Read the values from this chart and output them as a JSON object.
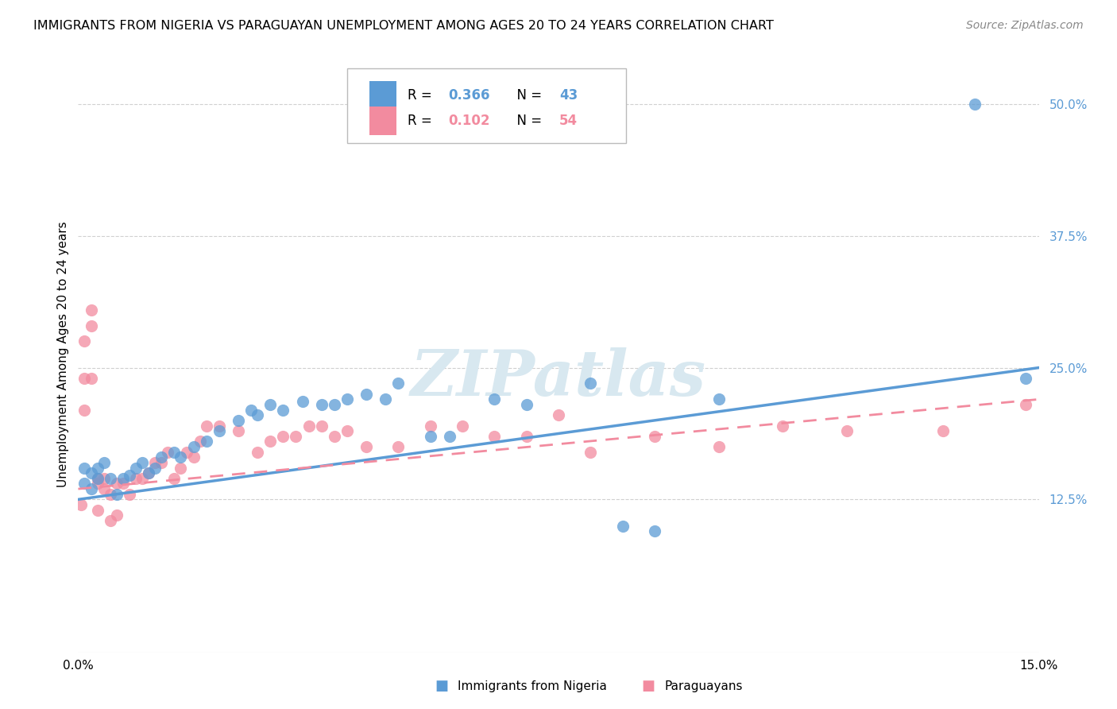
{
  "title": "IMMIGRANTS FROM NIGERIA VS PARAGUAYAN UNEMPLOYMENT AMONG AGES 20 TO 24 YEARS CORRELATION CHART",
  "source": "Source: ZipAtlas.com",
  "ylabel": "Unemployment Among Ages 20 to 24 years",
  "ytick_labels": [
    "12.5%",
    "25.0%",
    "37.5%",
    "50.0%"
  ],
  "ytick_values": [
    0.125,
    0.25,
    0.375,
    0.5
  ],
  "xlim": [
    0.0,
    0.15
  ],
  "ylim": [
    -0.02,
    0.545
  ],
  "legend_label_blue": "Immigrants from Nigeria",
  "legend_label_pink": "Paraguayans",
  "blue_color": "#5b9bd5",
  "pink_color": "#f28b9f",
  "tick_color": "#5b9bd5",
  "grid_color": "#d0d0d0",
  "watermark_color": "#d8e8f0",
  "blue_scatter_x": [
    0.001,
    0.001,
    0.002,
    0.002,
    0.003,
    0.003,
    0.004,
    0.005,
    0.006,
    0.007,
    0.008,
    0.009,
    0.01,
    0.011,
    0.012,
    0.013,
    0.015,
    0.016,
    0.018,
    0.02,
    0.022,
    0.025,
    0.027,
    0.028,
    0.03,
    0.032,
    0.035,
    0.038,
    0.04,
    0.042,
    0.045,
    0.048,
    0.05,
    0.055,
    0.058,
    0.065,
    0.07,
    0.08,
    0.085,
    0.09,
    0.1,
    0.14,
    0.148
  ],
  "blue_scatter_y": [
    0.14,
    0.155,
    0.135,
    0.15,
    0.145,
    0.155,
    0.16,
    0.145,
    0.13,
    0.145,
    0.148,
    0.155,
    0.16,
    0.15,
    0.155,
    0.165,
    0.17,
    0.165,
    0.175,
    0.18,
    0.19,
    0.2,
    0.21,
    0.205,
    0.215,
    0.21,
    0.218,
    0.215,
    0.215,
    0.22,
    0.225,
    0.22,
    0.235,
    0.185,
    0.185,
    0.22,
    0.215,
    0.235,
    0.1,
    0.095,
    0.22,
    0.5,
    0.24
  ],
  "pink_scatter_x": [
    0.0005,
    0.001,
    0.001,
    0.001,
    0.002,
    0.002,
    0.002,
    0.003,
    0.003,
    0.003,
    0.004,
    0.004,
    0.005,
    0.005,
    0.006,
    0.006,
    0.007,
    0.008,
    0.009,
    0.01,
    0.011,
    0.012,
    0.013,
    0.014,
    0.015,
    0.016,
    0.017,
    0.018,
    0.019,
    0.02,
    0.022,
    0.025,
    0.028,
    0.03,
    0.032,
    0.034,
    0.036,
    0.038,
    0.04,
    0.042,
    0.045,
    0.05,
    0.055,
    0.06,
    0.065,
    0.07,
    0.075,
    0.08,
    0.09,
    0.1,
    0.11,
    0.12,
    0.135,
    0.148
  ],
  "pink_scatter_y": [
    0.12,
    0.21,
    0.24,
    0.275,
    0.29,
    0.305,
    0.24,
    0.145,
    0.14,
    0.115,
    0.145,
    0.135,
    0.105,
    0.13,
    0.14,
    0.11,
    0.14,
    0.13,
    0.145,
    0.145,
    0.15,
    0.16,
    0.16,
    0.17,
    0.145,
    0.155,
    0.17,
    0.165,
    0.18,
    0.195,
    0.195,
    0.19,
    0.17,
    0.18,
    0.185,
    0.185,
    0.195,
    0.195,
    0.185,
    0.19,
    0.175,
    0.175,
    0.195,
    0.195,
    0.185,
    0.185,
    0.205,
    0.17,
    0.185,
    0.175,
    0.195,
    0.19,
    0.19,
    0.215
  ],
  "blue_line_x0": 0.0,
  "blue_line_x1": 0.15,
  "blue_line_y0": 0.125,
  "blue_line_y1": 0.25,
  "pink_line_x0": 0.0,
  "pink_line_x1": 0.15,
  "pink_line_y0": 0.135,
  "pink_line_y1": 0.22
}
